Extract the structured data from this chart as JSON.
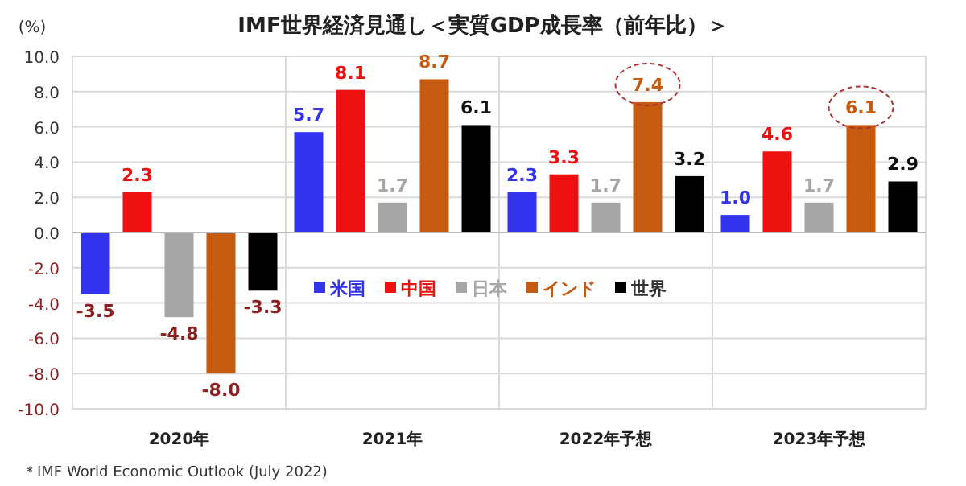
{
  "chart_data": {
    "type": "bar",
    "title": "IMF世界経済見通し＜実質GDP成長率（前年比）＞",
    "ylabel": "(%)",
    "categories": [
      "2020年",
      "2021年",
      "2022年予想",
      "2023年予想"
    ],
    "series": [
      {
        "name": "米国",
        "color": "#3333ee",
        "values": [
          -3.5,
          5.7,
          2.3,
          1.0
        ],
        "value_labels": [
          "-3.5",
          "5.7",
          "2.3",
          "1.0"
        ]
      },
      {
        "name": "中国",
        "color": "#ee1111",
        "values": [
          2.3,
          8.1,
          3.3,
          4.6
        ],
        "value_labels": [
          "2.3",
          "8.1",
          "3.3",
          "4.6"
        ]
      },
      {
        "name": "日本",
        "color": "#a6a6a6",
        "values": [
          -4.8,
          1.7,
          1.7,
          1.7
        ],
        "value_labels": [
          "-4.8",
          "1.7",
          "1.7",
          "1.7"
        ]
      },
      {
        "name": "インド",
        "color": "#c55a11",
        "values": [
          -8.0,
          8.7,
          7.4,
          6.1
        ],
        "value_labels": [
          "-8.0",
          "8.7",
          "7.4",
          "6.1"
        ]
      },
      {
        "name": "世界",
        "color": "#000000",
        "values": [
          -3.3,
          6.1,
          3.2,
          2.9
        ],
        "value_labels": [
          "-3.3",
          "6.1",
          "3.2",
          "2.9"
        ]
      }
    ],
    "ylim": [
      -10,
      10
    ],
    "yticks": [
      {
        "value": 10,
        "label": "10.0"
      },
      {
        "value": 8,
        "label": "8.0"
      },
      {
        "value": 6,
        "label": "6.0"
      },
      {
        "value": 4,
        "label": "4.0"
      },
      {
        "value": 2,
        "label": "2.0"
      },
      {
        "value": 0,
        "label": "0.0"
      },
      {
        "value": -2,
        "label": "-2.0"
      },
      {
        "value": -4,
        "label": "-4.0"
      },
      {
        "value": -6,
        "label": "-6.0"
      },
      {
        "value": -8,
        "label": "-8.0"
      },
      {
        "value": -10,
        "label": "-10.0"
      }
    ],
    "grid": true,
    "legend": "center",
    "annotations": [
      "＊IMF World Economic Outlook (July 2022)"
    ]
  }
}
